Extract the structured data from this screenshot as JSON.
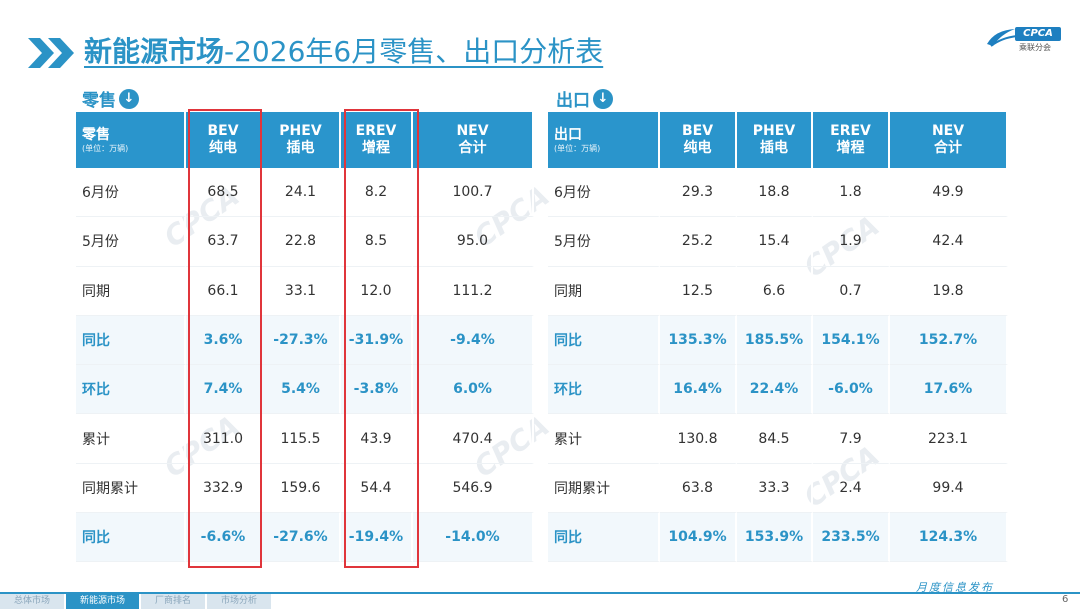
{
  "header": {
    "title_bold": "新能源市场",
    "title_rest": "-2026年6月零售、出口分析表",
    "logo_text": "CPCA",
    "logo_sub": "乘联分会"
  },
  "retail": {
    "section_label": "零售",
    "corner_title": "零售",
    "corner_unit": "(单位：万辆)",
    "columns": [
      {
        "en": "BEV",
        "cn": "纯电"
      },
      {
        "en": "PHEV",
        "cn": "插电"
      },
      {
        "en": "EREV",
        "cn": "增程"
      },
      {
        "en": "NEV",
        "cn": "合计"
      }
    ],
    "rows": [
      {
        "label": "6月份",
        "values": [
          "68.5",
          "24.1",
          "8.2",
          "100.7"
        ],
        "highlight": false
      },
      {
        "label": "5月份",
        "values": [
          "63.7",
          "22.8",
          "8.5",
          "95.0"
        ],
        "highlight": false
      },
      {
        "label": "同期",
        "values": [
          "66.1",
          "33.1",
          "12.0",
          "111.2"
        ],
        "highlight": false
      },
      {
        "label": "同比",
        "values": [
          "3.6%",
          "-27.3%",
          "-31.9%",
          "-9.4%"
        ],
        "highlight": true
      },
      {
        "label": "环比",
        "values": [
          "7.4%",
          "5.4%",
          "-3.8%",
          "6.0%"
        ],
        "highlight": true
      },
      {
        "label": "累计",
        "values": [
          "311.0",
          "115.5",
          "43.9",
          "470.4"
        ],
        "highlight": false
      },
      {
        "label": "同期累计",
        "values": [
          "332.9",
          "159.6",
          "54.4",
          "546.9"
        ],
        "highlight": false
      },
      {
        "label": "同比",
        "values": [
          "-6.6%",
          "-27.6%",
          "-19.4%",
          "-14.0%"
        ],
        "highlight": true
      }
    ]
  },
  "export": {
    "section_label": "出口",
    "corner_title": "出口",
    "corner_unit": "(单位：万辆)",
    "columns": [
      {
        "en": "BEV",
        "cn": "纯电"
      },
      {
        "en": "PHEV",
        "cn": "插电"
      },
      {
        "en": "EREV",
        "cn": "增程"
      },
      {
        "en": "NEV",
        "cn": "合计"
      }
    ],
    "rows": [
      {
        "label": "6月份",
        "values": [
          "29.3",
          "18.8",
          "1.8",
          "49.9"
        ],
        "highlight": false
      },
      {
        "label": "5月份",
        "values": [
          "25.2",
          "15.4",
          "1.9",
          "42.4"
        ],
        "highlight": false
      },
      {
        "label": "同期",
        "values": [
          "12.5",
          "6.6",
          "0.7",
          "19.8"
        ],
        "highlight": false
      },
      {
        "label": "同比",
        "values": [
          "135.3%",
          "185.5%",
          "154.1%",
          "152.7%"
        ],
        "highlight": true
      },
      {
        "label": "环比",
        "values": [
          "16.4%",
          "22.4%",
          "-6.0%",
          "17.6%"
        ],
        "highlight": true
      },
      {
        "label": "累计",
        "values": [
          "130.8",
          "84.5",
          "7.9",
          "223.1"
        ],
        "highlight": false
      },
      {
        "label": "同期累计",
        "values": [
          "63.8",
          "33.3",
          "2.4",
          "99.4"
        ],
        "highlight": false
      },
      {
        "label": "同比",
        "values": [
          "104.9%",
          "153.9%",
          "233.5%",
          "124.3%"
        ],
        "highlight": true
      }
    ]
  },
  "footer": {
    "tabs": [
      "总体市场",
      "新能源市场",
      "厂商排名",
      "市场分析"
    ],
    "active_tab": 1,
    "right_text": "月度信息发布",
    "page": "6"
  },
  "colors": {
    "accent": "#2b93c6",
    "header_bg": "#2a95cc",
    "highlight_row_bg": "#f2f8fc",
    "box_red": "#e0353b"
  },
  "icons": {
    "section_arrow": "circle-down-arrow-icon",
    "title_chevrons": "double-chevron-right-icon"
  }
}
